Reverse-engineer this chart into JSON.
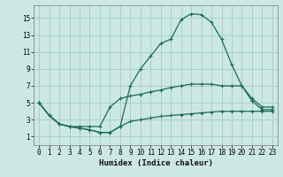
{
  "xlabel": "Humidex (Indice chaleur)",
  "bg_color": "#cce8e4",
  "grid_color": "#aacfcc",
  "line_color": "#1a6b5a",
  "xlim": [
    -0.5,
    23.5
  ],
  "ylim": [
    0.0,
    16.5
  ],
  "xticks": [
    0,
    1,
    2,
    3,
    4,
    5,
    6,
    7,
    8,
    9,
    10,
    11,
    12,
    13,
    14,
    15,
    16,
    17,
    18,
    19,
    20,
    21,
    22,
    23
  ],
  "yticks": [
    1,
    3,
    5,
    7,
    9,
    11,
    13,
    15
  ],
  "line1_x": [
    0,
    1,
    2,
    3,
    4,
    5,
    6,
    7,
    8,
    9,
    10,
    11,
    12,
    13,
    14,
    15,
    16,
    17,
    18,
    19,
    20,
    21,
    22,
    23
  ],
  "line1_y": [
    5.0,
    3.5,
    2.5,
    2.2,
    2.0,
    1.8,
    1.5,
    1.5,
    2.2,
    7.0,
    9.0,
    10.5,
    12.0,
    12.5,
    14.8,
    15.5,
    15.4,
    14.5,
    12.5,
    9.5,
    7.0,
    5.2,
    4.2,
    4.2
  ],
  "line2_x": [
    0,
    1,
    2,
    3,
    4,
    5,
    6,
    7,
    8,
    9,
    10,
    11,
    12,
    13,
    14,
    15,
    16,
    17,
    18,
    19,
    20,
    21,
    22,
    23
  ],
  "line2_y": [
    5.0,
    3.5,
    2.5,
    2.2,
    2.2,
    2.2,
    2.2,
    4.5,
    5.5,
    5.8,
    6.0,
    6.3,
    6.5,
    6.8,
    7.0,
    7.2,
    7.2,
    7.2,
    7.0,
    7.0,
    7.0,
    5.5,
    4.5,
    4.5
  ],
  "line3_x": [
    0,
    1,
    2,
    3,
    4,
    5,
    6,
    7,
    8,
    9,
    10,
    11,
    12,
    13,
    14,
    15,
    16,
    17,
    18,
    19,
    20,
    21,
    22,
    23
  ],
  "line3_y": [
    5.0,
    3.5,
    2.5,
    2.2,
    2.0,
    1.8,
    1.5,
    1.5,
    2.2,
    2.8,
    3.0,
    3.2,
    3.4,
    3.5,
    3.6,
    3.7,
    3.8,
    3.9,
    4.0,
    4.0,
    4.0,
    4.0,
    4.0,
    4.0
  ]
}
